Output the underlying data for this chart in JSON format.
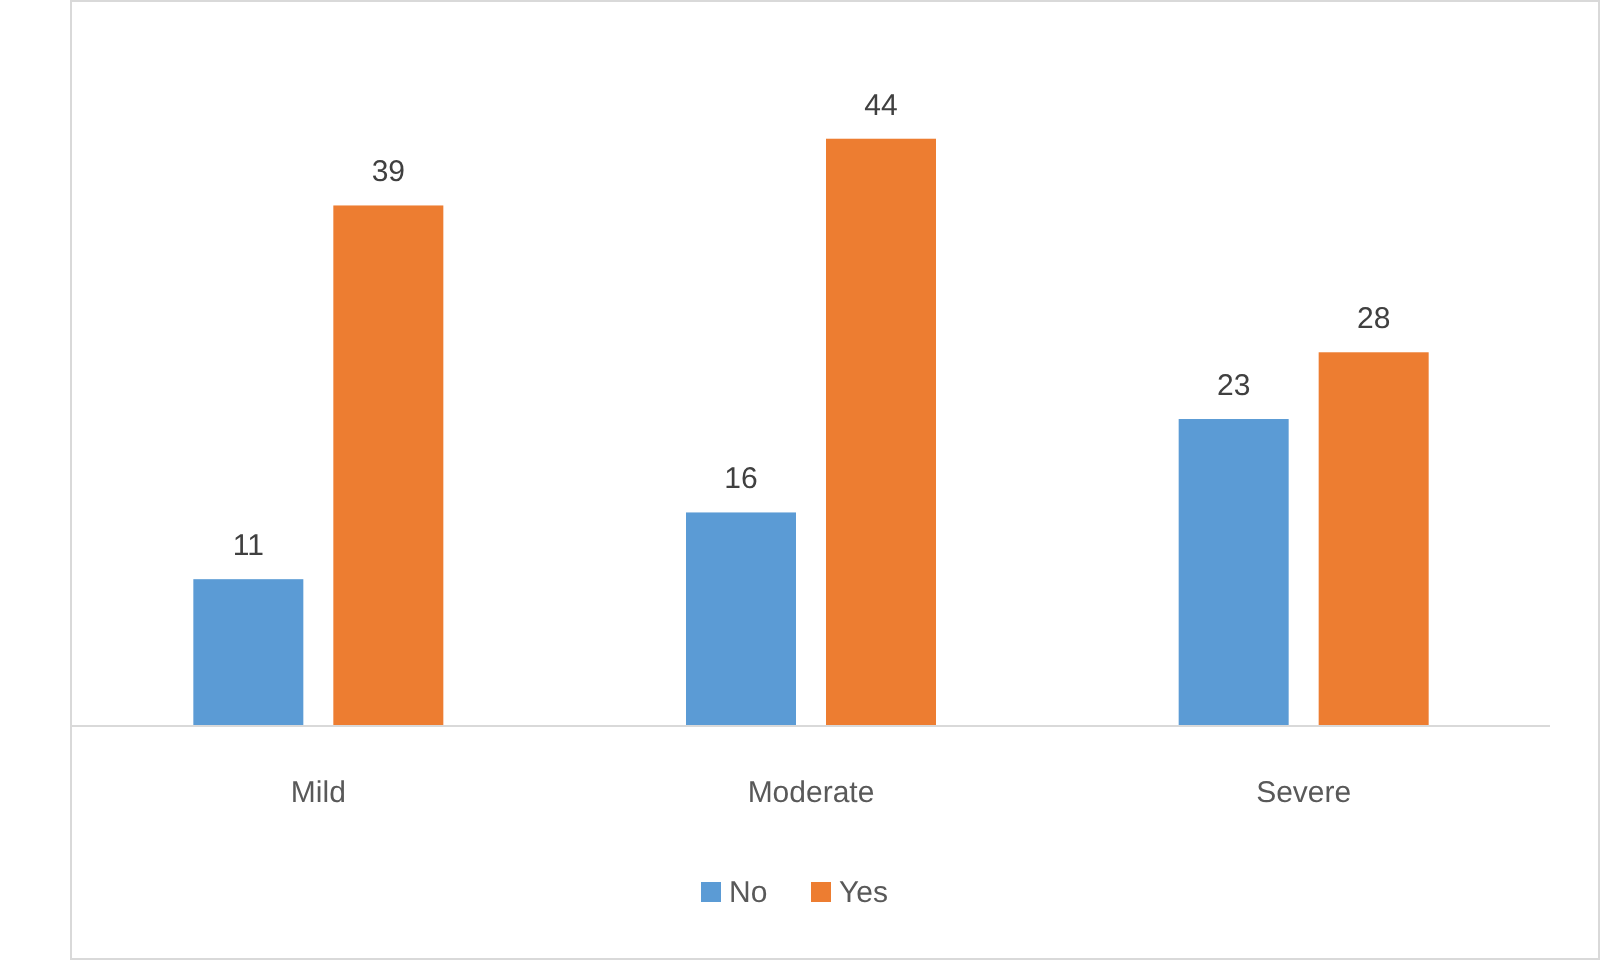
{
  "chart_data": {
    "type": "bar",
    "categories": [
      "Mild",
      "Moderate",
      "Severe"
    ],
    "series": [
      {
        "name": "No",
        "color": "#5b9bd5",
        "values": [
          11,
          16,
          23
        ]
      },
      {
        "name": "Yes",
        "color": "#ed7d31",
        "values": [
          39,
          44,
          28
        ]
      }
    ],
    "data_labels": true,
    "legend": "bottom",
    "grid": false
  }
}
